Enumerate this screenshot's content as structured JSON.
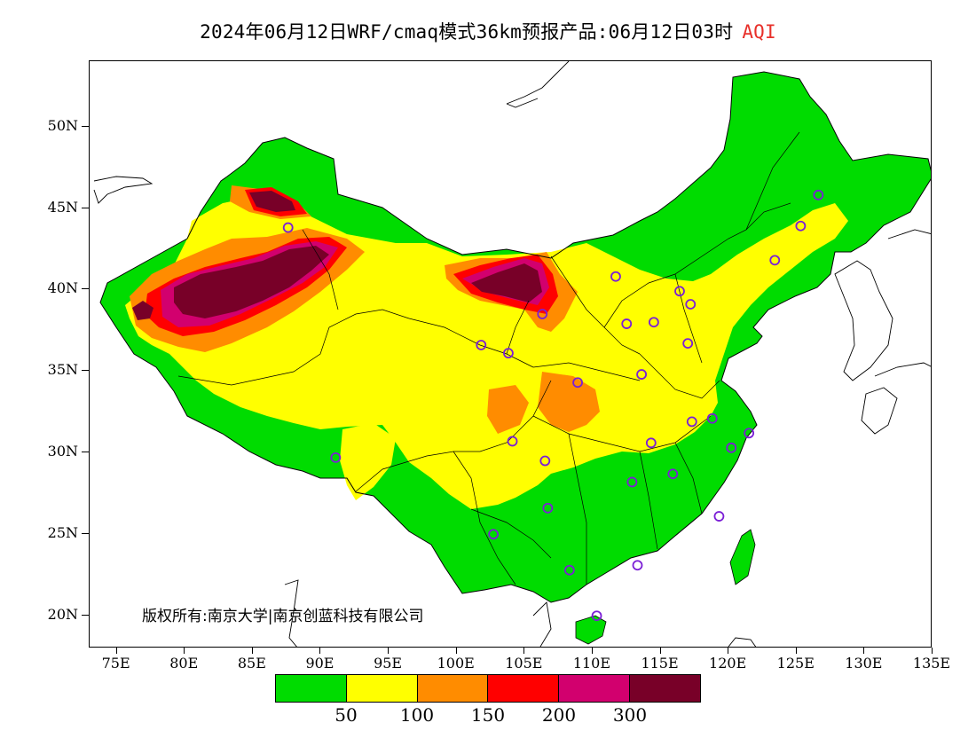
{
  "title": {
    "main": "2024年06月12日WRF/cmaq模式36km预报产品:06月12日03时",
    "variable": "AQI"
  },
  "map": {
    "lon_range": [
      73,
      135
    ],
    "lat_range": [
      18,
      54
    ],
    "y_ticks": [
      {
        "lat": 50,
        "label": "50N"
      },
      {
        "lat": 45,
        "label": "45N"
      },
      {
        "lat": 40,
        "label": "40N"
      },
      {
        "lat": 35,
        "label": "35N"
      },
      {
        "lat": 30,
        "label": "30N"
      },
      {
        "lat": 25,
        "label": "25N"
      },
      {
        "lat": 20,
        "label": "20N"
      }
    ],
    "x_ticks": [
      {
        "lon": 75,
        "label": "75E"
      },
      {
        "lon": 80,
        "label": "80E"
      },
      {
        "lon": 85,
        "label": "85E"
      },
      {
        "lon": 90,
        "label": "90E"
      },
      {
        "lon": 95,
        "label": "95E"
      },
      {
        "lon": 100,
        "label": "100E"
      },
      {
        "lon": 105,
        "label": "105E"
      },
      {
        "lon": 110,
        "label": "110E"
      },
      {
        "lon": 115,
        "label": "115E"
      },
      {
        "lon": 120,
        "label": "120E"
      },
      {
        "lon": 125,
        "label": "125E"
      },
      {
        "lon": 130,
        "label": "130E"
      },
      {
        "lon": 135,
        "label": "135E"
      }
    ],
    "copyright": "版权所有:南京大学|南京创蓝科技有限公司",
    "colors": {
      "good": "#00dc00",
      "moderate": "#ffff00",
      "usg": "#ff8c00",
      "unhealthy": "#ff0000",
      "very_unhealthy": "#d2006e",
      "hazardous": "#780028",
      "city_marker": "#7b1fd6"
    },
    "city_markers": [
      {
        "lon": 126.6,
        "lat": 45.8
      },
      {
        "lon": 125.3,
        "lat": 43.9
      },
      {
        "lon": 123.4,
        "lat": 41.8
      },
      {
        "lon": 111.7,
        "lat": 40.8
      },
      {
        "lon": 116.4,
        "lat": 39.9
      },
      {
        "lon": 117.2,
        "lat": 39.1
      },
      {
        "lon": 112.5,
        "lat": 37.9
      },
      {
        "lon": 114.5,
        "lat": 38.0
      },
      {
        "lon": 117.0,
        "lat": 36.7
      },
      {
        "lon": 113.6,
        "lat": 34.8
      },
      {
        "lon": 108.9,
        "lat": 34.3
      },
      {
        "lon": 106.3,
        "lat": 38.5
      },
      {
        "lon": 103.8,
        "lat": 36.1
      },
      {
        "lon": 101.8,
        "lat": 36.6
      },
      {
        "lon": 87.6,
        "lat": 43.8
      },
      {
        "lon": 91.1,
        "lat": 29.7
      },
      {
        "lon": 104.1,
        "lat": 30.7
      },
      {
        "lon": 106.5,
        "lat": 29.5
      },
      {
        "lon": 106.7,
        "lat": 26.6
      },
      {
        "lon": 102.7,
        "lat": 25.0
      },
      {
        "lon": 108.3,
        "lat": 22.8
      },
      {
        "lon": 113.3,
        "lat": 23.1
      },
      {
        "lon": 110.3,
        "lat": 20.0
      },
      {
        "lon": 112.9,
        "lat": 28.2
      },
      {
        "lon": 115.9,
        "lat": 28.7
      },
      {
        "lon": 114.3,
        "lat": 30.6
      },
      {
        "lon": 117.3,
        "lat": 31.9
      },
      {
        "lon": 118.8,
        "lat": 32.1
      },
      {
        "lon": 121.5,
        "lat": 31.2
      },
      {
        "lon": 120.2,
        "lat": 30.3
      },
      {
        "lon": 119.3,
        "lat": 26.1
      }
    ]
  },
  "legend": {
    "colors": [
      "#00dc00",
      "#ffff00",
      "#ff8c00",
      "#ff0000",
      "#d2006e",
      "#780028"
    ],
    "labels": [
      "50",
      "100",
      "150",
      "200",
      "300"
    ]
  }
}
